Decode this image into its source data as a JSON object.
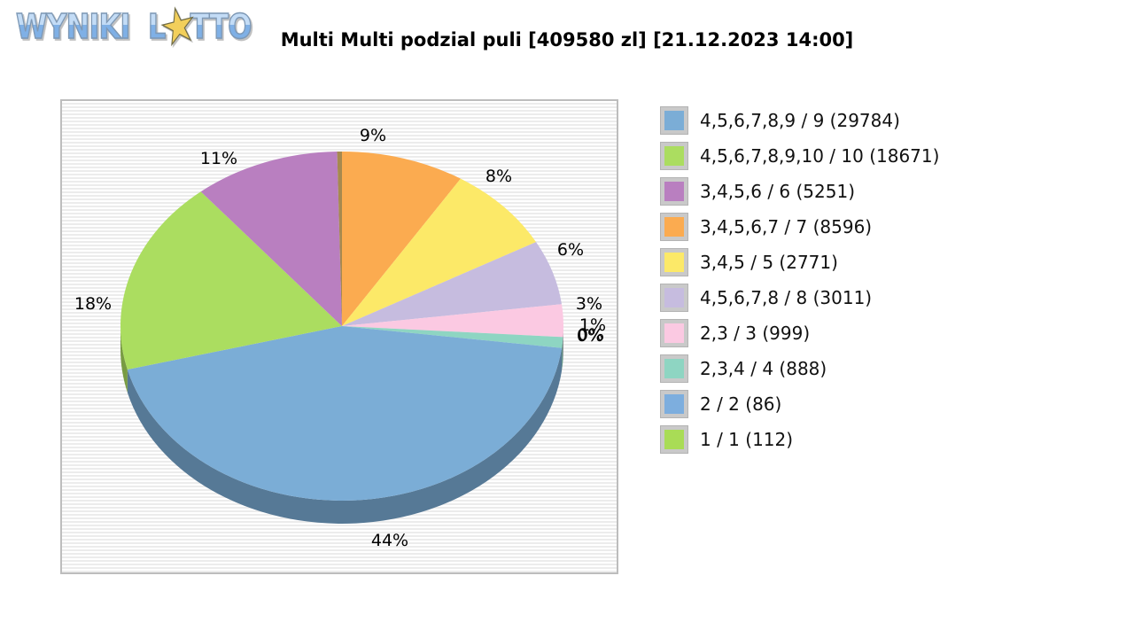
{
  "logo": {
    "word1": "WYNIKI",
    "word2_l": "L",
    "star_icon": "★",
    "word2_tto": "TTO"
  },
  "header": {
    "title": "Multi Multi podzial puli [409580 zl] [21.12.2023 14:00]",
    "pool_amount": "409580 zl",
    "draw_datetime": "21.12.2023 14:00"
  },
  "chart_data": {
    "type": "pie",
    "title": "Multi Multi podzial puli [409580 zl] [21.12.2023 14:00]",
    "legend_position": "right",
    "style": "3d-pie",
    "background": "horizontal gray stripes",
    "series": [
      {
        "label": "4,5,6,7,8,9 / 9",
        "count": 29784,
        "pct": 44,
        "color": "#7badd6"
      },
      {
        "label": "4,5,6,7,8,9,10 / 10",
        "count": 18671,
        "pct": 18,
        "color": "#abdd60"
      },
      {
        "label": "3,4,5,6 / 6",
        "count": 5251,
        "pct": 11,
        "color": "#b97fc0"
      },
      {
        "label": "3,4,5,6,7 / 7",
        "count": 8596,
        "pct": 9,
        "color": "#fbab50"
      },
      {
        "label": "3,4,5 / 5",
        "count": 2771,
        "pct": 8,
        "color": "#fce968"
      },
      {
        "label": "4,5,6,7,8 / 8",
        "count": 3011,
        "pct": 6,
        "color": "#c6bcdf"
      },
      {
        "label": "2,3 / 3",
        "count": 999,
        "pct": 3,
        "color": "#fbc9e2"
      },
      {
        "label": "2,3,4 / 4",
        "count": 888,
        "pct": 1,
        "color": "#8ed5c2"
      },
      {
        "label": "2 / 2",
        "count": 86,
        "pct": 0,
        "color": "#7daede"
      },
      {
        "label": "1 / 1",
        "count": 112,
        "pct": 0,
        "color": "#a9dc56"
      }
    ]
  }
}
